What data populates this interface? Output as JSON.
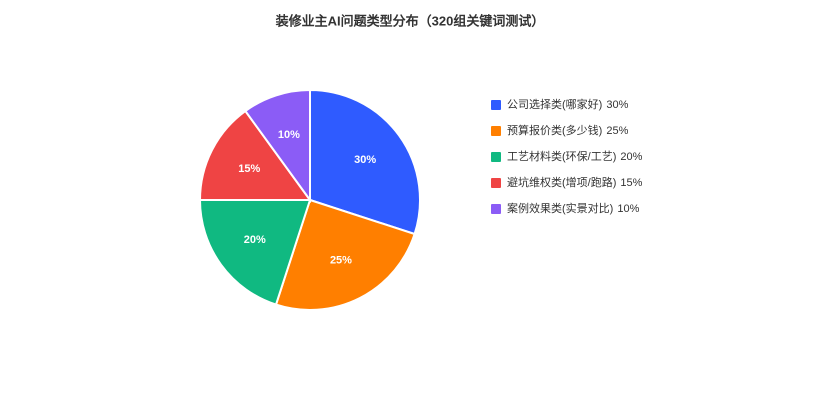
{
  "chart_data": {
    "type": "pie",
    "title": "装修业主AI问题类型分布（320组关键词测试）",
    "categories": [
      "公司选择类(哪家好)",
      "预算报价类(多少钱)",
      "工艺材料类(环保/工艺)",
      "避坑维权类(增项/跑路)",
      "案例效果类(实景对比)"
    ],
    "values": [
      30,
      25,
      20,
      15,
      10
    ],
    "value_labels": [
      "30%",
      "25%",
      "20%",
      "15%",
      "10%"
    ],
    "colors": [
      "#2f5bff",
      "#ff7f00",
      "#10b981",
      "#ef4444",
      "#8b5cf6"
    ],
    "legend": "right"
  }
}
